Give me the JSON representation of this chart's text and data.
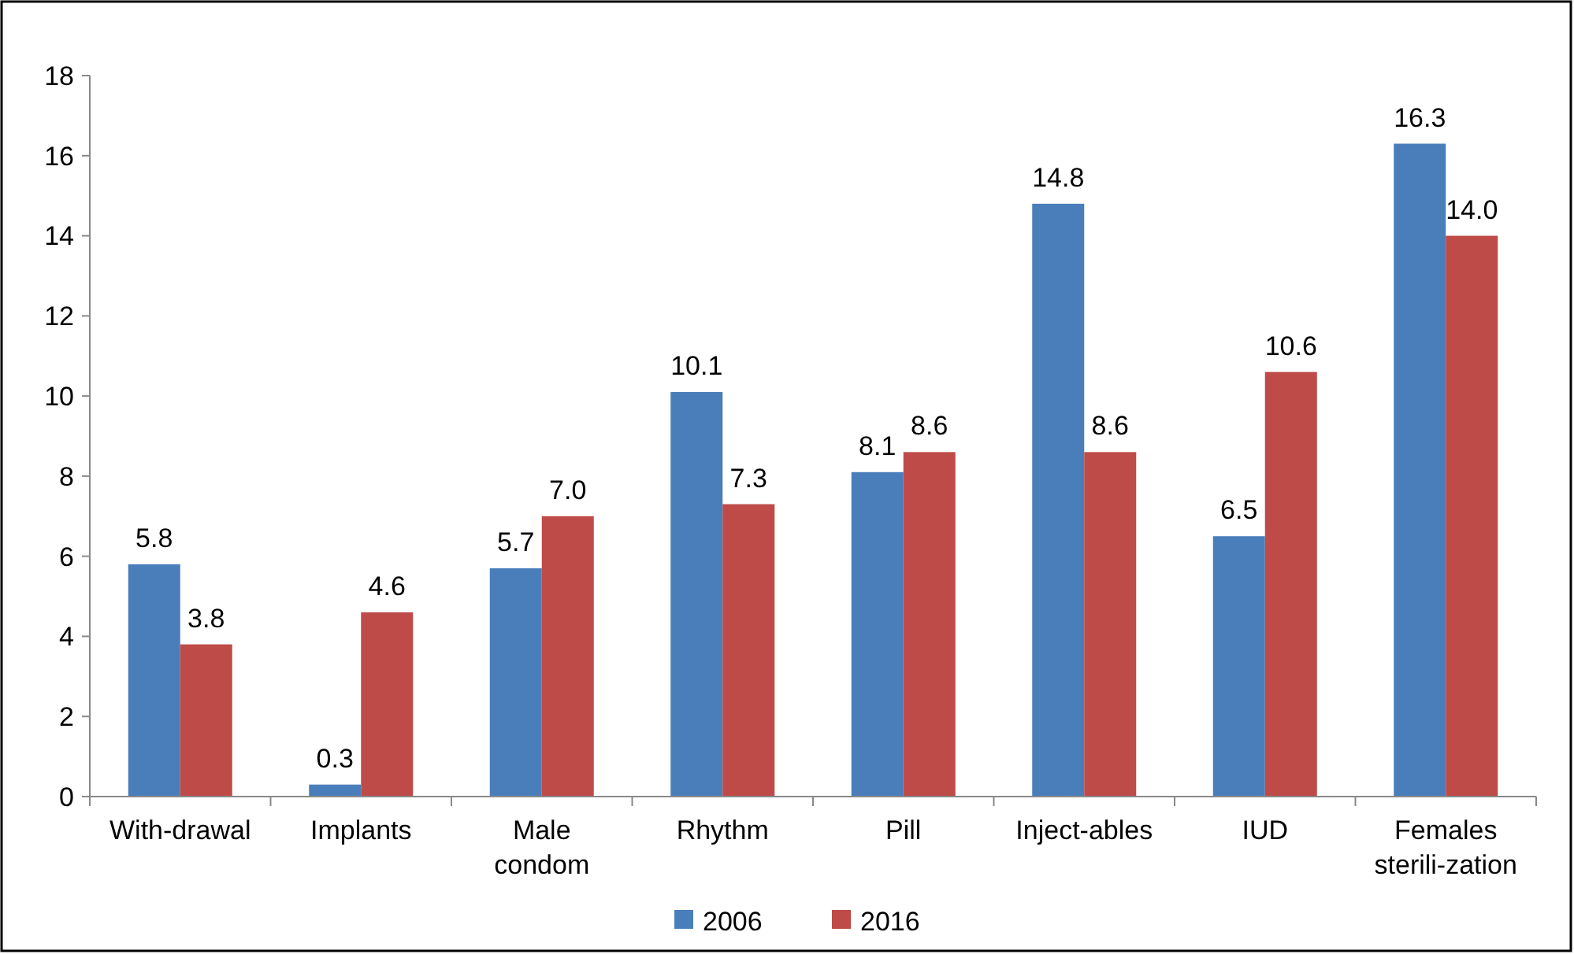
{
  "chart_data": {
    "type": "bar",
    "categories": [
      "With-drawal",
      "Implants",
      "Male condom",
      "Rhythm",
      "Pill",
      "Inject-ables",
      "IUD",
      "Females sterili-zation"
    ],
    "series": [
      {
        "name": "2006",
        "color": "#4a7ebb",
        "values": [
          5.8,
          0.3,
          5.7,
          10.1,
          8.1,
          14.8,
          6.5,
          16.3
        ],
        "value_labels": [
          "5.8",
          "0.3",
          "5.7",
          "10.1",
          "8.1",
          "14.8",
          "6.5",
          "16.3"
        ]
      },
      {
        "name": "2016",
        "color": "#be4b48",
        "values": [
          3.8,
          4.6,
          7.0,
          7.3,
          8.6,
          8.6,
          10.6,
          14.0
        ],
        "value_labels": [
          "3.8",
          "4.6",
          "7.0",
          "7.3",
          "8.6",
          "8.6",
          "10.6",
          "14.0"
        ]
      }
    ],
    "ylim": [
      0,
      18
    ],
    "yticks": [
      0,
      2,
      4,
      6,
      8,
      10,
      12,
      14,
      16,
      18
    ],
    "grid": false,
    "legend": "bottom"
  }
}
